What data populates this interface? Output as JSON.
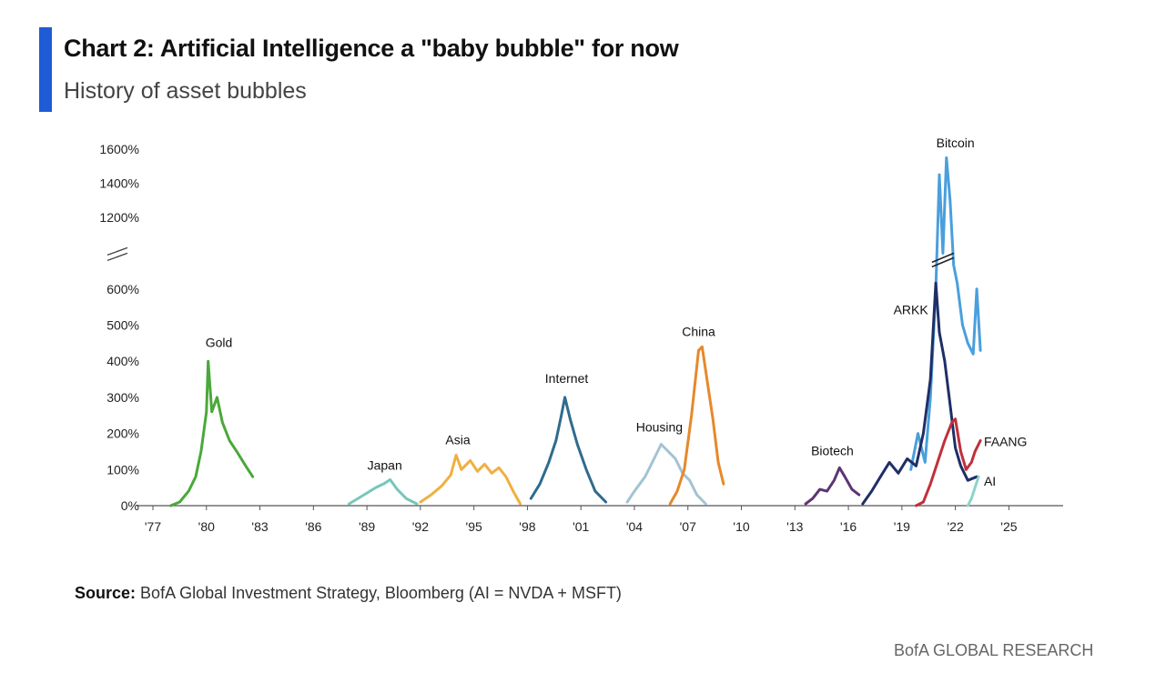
{
  "header": {
    "title": "Chart 2: Artificial Intelligence a \"baby bubble\" for now",
    "subtitle": "History of asset bubbles"
  },
  "footer": {
    "source_label": "Source:",
    "source_text": "BofA Global Investment Strategy, Bloomberg (AI = NVDA + MSFT)",
    "brand": "BofA GLOBAL RESEARCH"
  },
  "chart_data": {
    "type": "line",
    "title": "Chart 2: Artificial Intelligence a \"baby bubble\" for now",
    "subtitle": "History of asset bubbles",
    "xlabel": "",
    "ylabel": "",
    "xlim": [
      1977,
      2026
    ],
    "y_scale": "broken axis (0%–600% lower segment, 1200%–1600% upper segment)",
    "y_ticks": [
      "0%",
      "100%",
      "200%",
      "300%",
      "400%",
      "500%",
      "600%",
      "1200%",
      "1400%",
      "1600%"
    ],
    "x_ticks": [
      "'77",
      "'80",
      "'83",
      "'86",
      "'89",
      "'92",
      "'95",
      "'98",
      "'01",
      "'04",
      "'07",
      "'10",
      "'13",
      "'16",
      "'19",
      "'22",
      "'25"
    ],
    "x_tick_years": [
      1977,
      1980,
      1983,
      1986,
      1989,
      1992,
      1995,
      1998,
      2001,
      2004,
      2007,
      2010,
      2013,
      2016,
      2019,
      2022,
      2025
    ],
    "grid": false,
    "legend": "none (series labelled directly on chart)",
    "series": [
      {
        "name": "Gold",
        "color": "#4aa83a",
        "x": [
          1978.0,
          1978.5,
          1979.0,
          1979.4,
          1979.7,
          1980.0,
          1980.1,
          1980.3,
          1980.6,
          1980.9,
          1981.3,
          1981.7,
          1982.2,
          1982.6
        ],
        "y": [
          0,
          10,
          40,
          80,
          150,
          260,
          400,
          260,
          300,
          230,
          180,
          150,
          110,
          80
        ]
      },
      {
        "name": "Japan",
        "color": "#76c7bb",
        "x": [
          1988.0,
          1988.5,
          1989.0,
          1989.5,
          1990.0,
          1990.3,
          1990.7,
          1991.2,
          1991.8
        ],
        "y": [
          5,
          20,
          35,
          50,
          62,
          72,
          45,
          20,
          5
        ]
      },
      {
        "name": "Asia",
        "color": "#f0b040",
        "x": [
          1992.0,
          1992.6,
          1993.2,
          1993.7,
          1994.0,
          1994.3,
          1994.8,
          1995.2,
          1995.6,
          1996.0,
          1996.4,
          1996.8,
          1997.2,
          1997.6
        ],
        "y": [
          10,
          30,
          55,
          85,
          140,
          100,
          125,
          95,
          115,
          90,
          105,
          80,
          40,
          5
        ]
      },
      {
        "name": "Internet",
        "color": "#2f6b8e",
        "x": [
          1998.2,
          1998.7,
          1999.2,
          1999.6,
          1999.9,
          2000.1,
          2000.4,
          2000.8,
          2001.3,
          2001.8,
          2002.4
        ],
        "y": [
          20,
          60,
          120,
          180,
          250,
          300,
          240,
          170,
          100,
          40,
          10
        ]
      },
      {
        "name": "Housing",
        "color": "#a3c3d3",
        "x": [
          2003.6,
          2004.0,
          2004.6,
          2005.0,
          2005.5,
          2005.9,
          2006.3,
          2006.7,
          2007.1,
          2007.5,
          2008.0
        ],
        "y": [
          10,
          40,
          80,
          120,
          170,
          150,
          130,
          90,
          70,
          30,
          5
        ]
      },
      {
        "name": "China",
        "color": "#e6892b",
        "x": [
          2006.0,
          2006.4,
          2006.8,
          2007.2,
          2007.6,
          2007.8,
          2008.1,
          2008.4,
          2008.7,
          2009.0
        ],
        "y": [
          5,
          40,
          100,
          250,
          430,
          440,
          340,
          240,
          120,
          60
        ]
      },
      {
        "name": "Biotech",
        "color": "#5e3473",
        "x": [
          2013.6,
          2014.0,
          2014.4,
          2014.8,
          2015.2,
          2015.5,
          2015.8,
          2016.2,
          2016.6
        ],
        "y": [
          5,
          20,
          45,
          40,
          70,
          105,
          80,
          45,
          30
        ]
      },
      {
        "name": "Bitcoin",
        "color": "#4a9fdc",
        "x": [
          2019.5,
          2019.9,
          2020.3,
          2020.6,
          2020.9,
          2021.1,
          2021.3,
          2021.5,
          2021.7,
          2021.9,
          2022.1,
          2022.4,
          2022.7,
          2023.0,
          2023.2,
          2023.4
        ],
        "y": [
          100,
          200,
          120,
          300,
          600,
          1450,
          900,
          1550,
          1300,
          800,
          650,
          500,
          450,
          420,
          600,
          430
        ]
      },
      {
        "name": "ARKK",
        "color": "#1f2f66",
        "x": [
          2016.8,
          2017.3,
          2017.8,
          2018.3,
          2018.8,
          2019.3,
          2019.8,
          2020.2,
          2020.6,
          2020.9,
          2021.1,
          2021.4,
          2021.7,
          2022.0,
          2022.3,
          2022.7,
          2023.2
        ],
        "y": [
          5,
          40,
          80,
          120,
          90,
          130,
          110,
          200,
          350,
          650,
          480,
          400,
          280,
          160,
          110,
          70,
          80
        ]
      },
      {
        "name": "FAANG",
        "color": "#c0303a",
        "x": [
          2019.8,
          2020.2,
          2020.6,
          2021.0,
          2021.4,
          2021.8,
          2022.0,
          2022.3,
          2022.6,
          2022.9,
          2023.1,
          2023.4
        ],
        "y": [
          0,
          10,
          60,
          120,
          180,
          230,
          240,
          150,
          100,
          120,
          150,
          180
        ]
      },
      {
        "name": "AI",
        "color": "#8fd3c8",
        "x": [
          2022.7,
          2022.9,
          2023.1,
          2023.3
        ],
        "y": [
          0,
          20,
          50,
          80
        ]
      }
    ]
  }
}
